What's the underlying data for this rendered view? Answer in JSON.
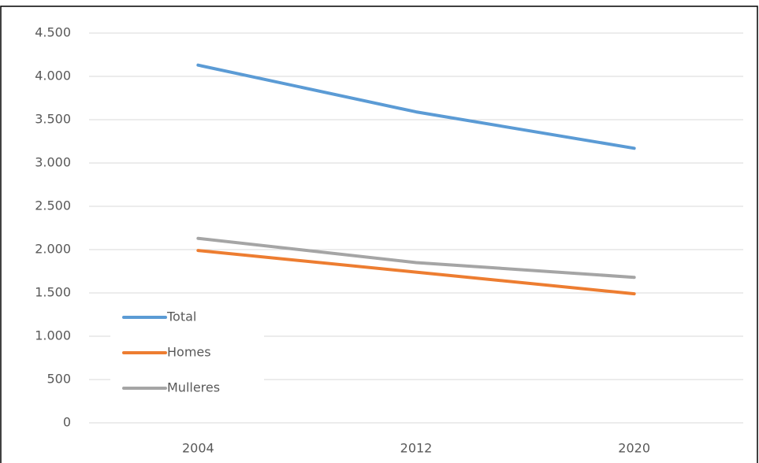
{
  "chart_data": {
    "type": "line",
    "categories": [
      "2004",
      "2012",
      "2020"
    ],
    "series": [
      {
        "name": "Total",
        "color": "#5b9bd5",
        "values": [
          4130,
          3590,
          3170
        ]
      },
      {
        "name": "Homes",
        "color": "#ed7d31",
        "values": [
          1990,
          1740,
          1490
        ]
      },
      {
        "name": "Mulleres",
        "color": "#a5a5a5",
        "values": [
          2130,
          1850,
          1680
        ]
      }
    ],
    "ylim": [
      0,
      4500
    ],
    "yticks": [
      0,
      500,
      {
        "value": 1000,
        "label": "1.000"
      },
      {
        "value": 1500,
        "label": "1.500"
      },
      {
        "value": 2000,
        "label": "2.000"
      },
      {
        "value": 2500,
        "label": "2.500"
      },
      {
        "value": 3000,
        "label": "3.000"
      },
      {
        "value": 3500,
        "label": "3.500"
      },
      {
        "value": 4000,
        "label": "4.000"
      },
      {
        "value": 4500,
        "label": "4.500"
      }
    ],
    "grid": true,
    "legend": "lower left"
  }
}
